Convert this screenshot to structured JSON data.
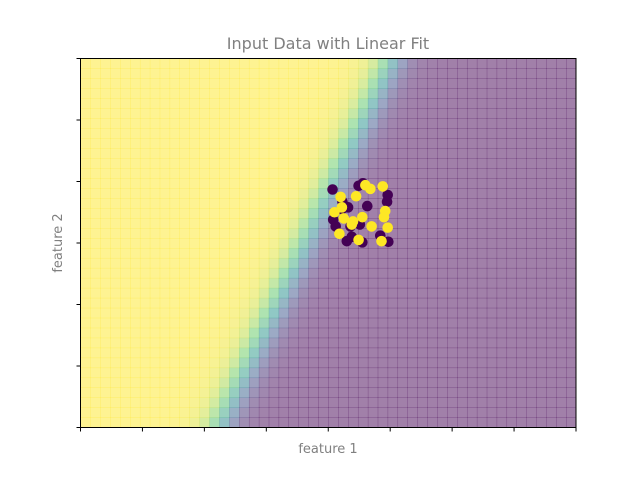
{
  "chart_data": {
    "type": "scatter",
    "title": "Input Data with Linear Fit",
    "xlabel": "feature 1",
    "ylabel": "feature 2",
    "xlim": [
      0,
      8
    ],
    "ylim": [
      0,
      6
    ],
    "tick_labels_visible": false,
    "x_ticks": [
      0,
      1,
      2,
      3,
      4,
      5,
      6,
      7,
      8
    ],
    "y_ticks": [
      0,
      1,
      2,
      3,
      4,
      5,
      6
    ],
    "decision_boundary": {
      "description": "logistic-regression probability surface",
      "line_points": [
        [
          2.25,
          0
        ],
        [
          5.05,
          6
        ]
      ],
      "transition_width": 0.15,
      "grid_cells": [
        50,
        37
      ],
      "opacity": 0.5,
      "colormap": "viridis"
    },
    "class_colors": {
      "class0": "#440154",
      "class1": "#fde725"
    },
    "series": [
      {
        "class": 0,
        "x": [
          4.07,
          4.23,
          4.32,
          4.49,
          4.56,
          4.63,
          4.22,
          4.08,
          4.12,
          4.36,
          4.51,
          4.38,
          4.96,
          4.95,
          4.84,
          4.97,
          4.55,
          4.3
        ],
        "y": [
          3.87,
          3.67,
          3.58,
          3.93,
          3.97,
          3.6,
          3.55,
          3.38,
          3.27,
          3.27,
          3.3,
          3.1,
          3.78,
          3.67,
          3.12,
          3.02,
          3.01,
          3.03
        ]
      },
      {
        "class": 1,
        "x": [
          4.2,
          4.45,
          4.6,
          4.68,
          4.88,
          4.1,
          4.25,
          4.4,
          4.55,
          4.92,
          4.9,
          4.96,
          4.7,
          4.38,
          4.18,
          4.49,
          4.86,
          4.22
        ],
        "y": [
          3.75,
          3.76,
          3.94,
          3.88,
          3.92,
          3.5,
          3.4,
          3.35,
          3.42,
          3.52,
          3.42,
          3.25,
          3.27,
          3.3,
          3.15,
          3.05,
          3.03,
          3.58
        ]
      }
    ]
  }
}
